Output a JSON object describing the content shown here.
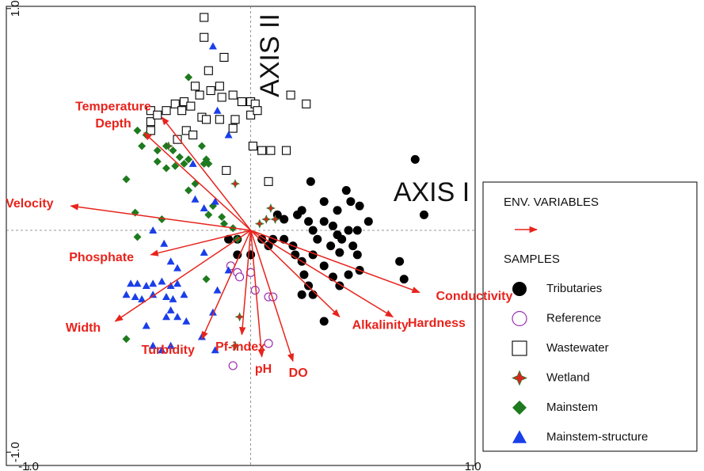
{
  "chart_data": {
    "type": "biplot",
    "xlim": [
      -1.1,
      1.01
    ],
    "ylim": [
      -1.06,
      1.01
    ],
    "xticks": [
      {
        "value": -1,
        "label": "-1.0"
      },
      {
        "value": 1,
        "label": "1.0"
      }
    ],
    "yticks": [
      {
        "value": -1,
        "label": "-1.0"
      },
      {
        "value": 1,
        "label": "1.0"
      }
    ],
    "zero_lines": true,
    "axis_labels": {
      "x": "AXIS I",
      "y": "AXIS II"
    },
    "vectors": {
      "name": "ENV. VARIABLES",
      "color": "#e8231c",
      "items": [
        {
          "label": "Temperature",
          "x": -0.4,
          "y": 0.51
        },
        {
          "label": "Depth",
          "x": -0.48,
          "y": 0.44
        },
        {
          "label": "Velocity",
          "x": -0.81,
          "y": 0.11
        },
        {
          "label": "Phosphate",
          "x": -0.45,
          "y": -0.11
        },
        {
          "label": "Width",
          "x": -0.61,
          "y": -0.41
        },
        {
          "label": "Turbidity",
          "x": -0.22,
          "y": -0.49
        },
        {
          "label": "Pf-index",
          "x": -0.04,
          "y": -0.47
        },
        {
          "label": "pH",
          "x": 0.05,
          "y": -0.57
        },
        {
          "label": "DO",
          "x": 0.19,
          "y": -0.59
        },
        {
          "label": "Alkalinity",
          "x": 0.4,
          "y": -0.39
        },
        {
          "label": "Hardness",
          "x": 0.64,
          "y": -0.39
        },
        {
          "label": "Conductivity",
          "x": 0.76,
          "y": -0.28
        }
      ]
    },
    "samples_title": "SAMPLES",
    "series": [
      {
        "name": "Tributaries",
        "marker": "circle",
        "color": "#000000",
        "x": [
          0.74,
          0.78,
          0.27,
          0.33,
          0.43,
          0.45,
          0.49,
          0.53,
          0.21,
          0.23,
          0.26,
          0.28,
          0.3,
          0.33,
          0.37,
          0.39,
          0.41,
          0.44,
          0.36,
          0.4,
          0.46,
          0.48,
          0.67,
          0.69,
          0.49,
          0.44,
          0.33,
          0.28,
          0.23,
          0.2,
          0.24,
          0.26,
          0.28,
          0.37,
          0.4,
          0.33,
          0.23,
          0.19,
          0.15,
          0.1,
          0.08,
          0.05,
          -0.06,
          -0.1,
          -0.06,
          0.0,
          0.12,
          0.15,
          0.39,
          0.48
        ],
        "y": [
          0.32,
          0.07,
          0.22,
          0.13,
          0.18,
          0.13,
          0.11,
          0.04,
          0.07,
          0.09,
          0.04,
          0.0,
          -0.04,
          0.04,
          0.02,
          -0.02,
          -0.04,
          0.0,
          -0.07,
          -0.1,
          -0.07,
          -0.11,
          -0.14,
          -0.22,
          -0.18,
          -0.2,
          -0.16,
          -0.11,
          -0.14,
          -0.11,
          -0.2,
          -0.25,
          -0.29,
          -0.21,
          -0.25,
          -0.41,
          -0.29,
          -0.07,
          -0.04,
          -0.04,
          -0.07,
          -0.04,
          -0.04,
          -0.04,
          -0.11,
          -0.11,
          0.07,
          0.05,
          0.09,
          0.0
        ]
      },
      {
        "name": "Reference",
        "marker": "open-circle",
        "color": "#9b30b0",
        "x": [
          -0.09,
          -0.06,
          0.0,
          -0.05,
          0.08,
          0.1,
          0.08,
          -0.08,
          0.02
        ],
        "y": [
          -0.16,
          -0.19,
          -0.19,
          -0.21,
          -0.3,
          -0.3,
          -0.51,
          -0.61,
          -0.27
        ]
      },
      {
        "name": "Wastewater",
        "marker": "square",
        "color": "#000000",
        "x": [
          -0.21,
          -0.21,
          -0.12,
          -0.19,
          -0.25,
          -0.14,
          -0.18,
          -0.23,
          -0.13,
          -0.08,
          -0.04,
          0.0,
          0.02,
          -0.3,
          -0.27,
          -0.34,
          -0.45,
          -0.45,
          -0.42,
          -0.38,
          -0.31,
          -0.22,
          -0.14,
          -0.07,
          0.0,
          0.03,
          -0.45,
          -0.29,
          -0.33,
          -0.26,
          -0.2,
          -0.08,
          0.18,
          0.25,
          0.01,
          0.05,
          0.09,
          0.16,
          -0.11,
          0.08
        ],
        "y": [
          0.96,
          0.87,
          0.78,
          0.72,
          0.65,
          0.65,
          0.63,
          0.61,
          0.6,
          0.61,
          0.58,
          0.58,
          0.57,
          0.58,
          0.56,
          0.57,
          0.54,
          0.49,
          0.52,
          0.54,
          0.54,
          0.51,
          0.5,
          0.5,
          0.52,
          0.54,
          0.45,
          0.45,
          0.41,
          0.43,
          0.5,
          0.46,
          0.61,
          0.57,
          0.38,
          0.36,
          0.36,
          0.36,
          0.27,
          0.22
        ]
      },
      {
        "name": "Wetland",
        "marker": "star",
        "color": "#d7261e",
        "edge_color": "#2e7d32",
        "x": [
          -0.37,
          -0.07,
          0.09,
          0.11,
          -0.05,
          -0.07,
          0.07,
          0.04
        ],
        "y": [
          0.38,
          0.21,
          0.1,
          0.05,
          -0.39,
          -0.52,
          0.05,
          0.03
        ]
      },
      {
        "name": "Mainstem",
        "marker": "diamond",
        "color": "#1e7a1e",
        "x": [
          -0.28,
          -0.51,
          -0.47,
          -0.49,
          -0.42,
          -0.38,
          -0.35,
          -0.32,
          -0.3,
          -0.42,
          -0.38,
          -0.34,
          -0.28,
          -0.22,
          -0.2,
          -0.19,
          -0.25,
          -0.28,
          -0.56,
          -0.52,
          -0.4,
          -0.51,
          -0.19,
          -0.13,
          -0.12,
          -0.08,
          -0.2,
          -0.56,
          -0.17,
          -0.06,
          -0.21
        ],
        "y": [
          0.69,
          0.45,
          0.43,
          0.38,
          0.36,
          0.38,
          0.36,
          0.33,
          0.3,
          0.31,
          0.28,
          0.29,
          0.32,
          0.38,
          0.32,
          0.3,
          0.21,
          0.18,
          0.23,
          0.08,
          0.05,
          -0.03,
          0.07,
          0.06,
          0.03,
          0.01,
          -0.22,
          -0.49,
          0.11,
          -0.04,
          0.3
        ]
      },
      {
        "name": "Mainstem-structure",
        "marker": "triangle",
        "color": "#1a3ee8",
        "x": [
          -0.17,
          -0.15,
          -0.1,
          -0.26,
          -0.16,
          -0.25,
          -0.21,
          -0.44,
          -0.39,
          -0.36,
          -0.33,
          -0.21,
          -0.54,
          -0.51,
          -0.47,
          -0.44,
          -0.4,
          -0.36,
          -0.33,
          -0.56,
          -0.52,
          -0.49,
          -0.44,
          -0.38,
          -0.35,
          -0.3,
          -0.36,
          -0.33,
          -0.29,
          -0.38,
          -0.47,
          -0.44,
          -0.4,
          -0.36,
          -0.22,
          -0.16,
          -0.17,
          -0.15,
          -0.1
        ],
        "y": [
          0.83,
          0.54,
          0.43,
          0.3,
          0.13,
          0.14,
          0.1,
          0.0,
          -0.06,
          -0.14,
          -0.17,
          -0.1,
          -0.24,
          -0.24,
          -0.25,
          -0.24,
          -0.23,
          -0.25,
          -0.24,
          -0.29,
          -0.3,
          -0.31,
          -0.29,
          -0.3,
          -0.31,
          -0.29,
          -0.36,
          -0.39,
          -0.41,
          -0.39,
          -0.43,
          -0.52,
          -0.54,
          -0.52,
          -0.48,
          -0.54,
          -0.37,
          -0.27,
          -0.18
        ]
      }
    ]
  }
}
